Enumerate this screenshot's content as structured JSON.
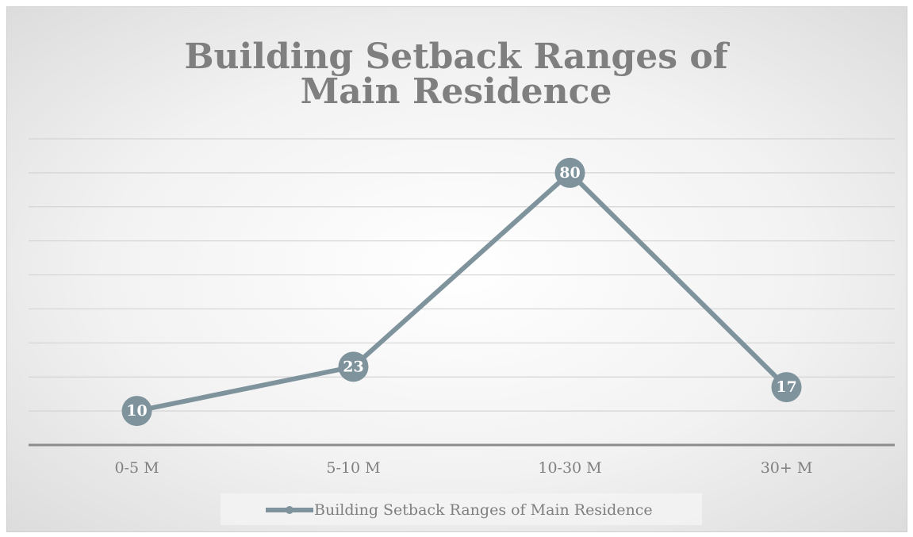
{
  "chart_data": {
    "type": "line",
    "title": "Building Setback Ranges of Main Residence",
    "categories": [
      "0-5 M",
      "5-10 M",
      "10-30 M",
      "30+ M"
    ],
    "series": [
      {
        "name": "Building Setback Ranges of Main Residence",
        "color": "#7f939d",
        "values": [
          10,
          23,
          80,
          17
        ]
      }
    ],
    "ylim": [
      0,
      90
    ],
    "yticks": [
      0,
      10,
      20,
      30,
      40,
      50,
      60,
      70,
      80,
      90
    ],
    "grid": true,
    "legend": "bottom"
  }
}
